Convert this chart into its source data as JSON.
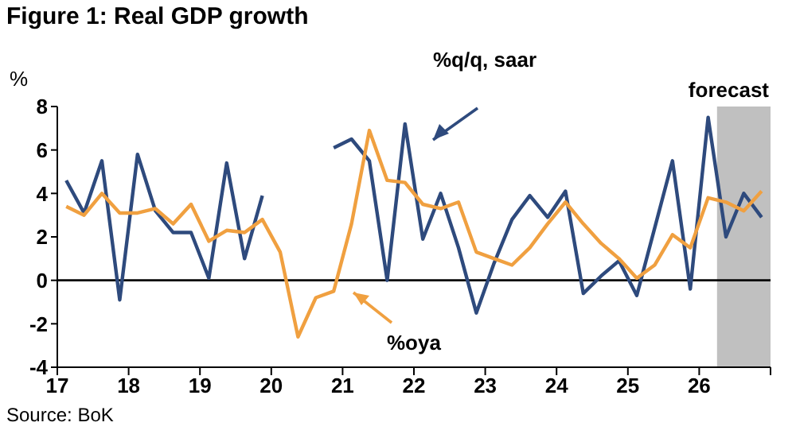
{
  "chart_data": {
    "type": "line",
    "title": "Figure 1: Real GDP growth",
    "ylabel": "%",
    "x": [
      2017.125,
      2017.375,
      2017.625,
      2017.875,
      2018.125,
      2018.375,
      2018.625,
      2018.875,
      2019.125,
      2019.375,
      2019.625,
      2019.875,
      2020.125,
      2020.375,
      2020.625,
      2020.875,
      2021.125,
      2021.375,
      2021.625,
      2021.875,
      2022.125,
      2022.375,
      2022.625,
      2022.875,
      2023.125,
      2023.375,
      2023.625,
      2023.875,
      2024.125,
      2024.375,
      2024.625,
      2024.875,
      2025.125,
      2025.375,
      2025.625,
      2025.875,
      2026.125,
      2026.375,
      2026.625,
      2026.875
    ],
    "series": [
      {
        "name": "%q/q, saar",
        "color": "#2e4a7d",
        "values": [
          4.6,
          3.1,
          5.5,
          -0.9,
          5.8,
          3.2,
          2.2,
          2.2,
          0.1,
          5.4,
          1.0,
          3.9,
          null,
          null,
          null,
          6.1,
          6.5,
          5.5,
          0.0,
          7.2,
          1.9,
          4.0,
          1.5,
          -1.5,
          0.8,
          2.8,
          3.9,
          2.9,
          4.1,
          -0.6,
          0.2,
          0.9,
          -0.7,
          2.4,
          5.5,
          -0.4,
          7.5,
          2.0,
          4.0,
          2.9
        ]
      },
      {
        "name": "%oya",
        "color": "#f0a040",
        "values": [
          3.4,
          3.0,
          4.0,
          3.1,
          3.1,
          3.3,
          2.6,
          3.5,
          1.8,
          2.3,
          2.2,
          2.8,
          1.3,
          -2.6,
          -0.8,
          -0.5,
          2.6,
          6.9,
          4.6,
          4.5,
          3.5,
          3.3,
          3.6,
          1.3,
          1.0,
          0.7,
          1.5,
          2.6,
          3.6,
          2.6,
          1.7,
          1.0,
          0.1,
          0.7,
          2.1,
          1.5,
          3.8,
          3.6,
          3.2,
          4.1
        ]
      }
    ],
    "xlim": [
      2017,
      2027
    ],
    "xticks": [
      {
        "value": 2017,
        "label": "17"
      },
      {
        "value": 2018,
        "label": "18"
      },
      {
        "value": 2019,
        "label": "19"
      },
      {
        "value": 2020,
        "label": "20"
      },
      {
        "value": 2021,
        "label": "21"
      },
      {
        "value": 2022,
        "label": "22"
      },
      {
        "value": 2023,
        "label": "23"
      },
      {
        "value": 2024,
        "label": "24"
      },
      {
        "value": 2025,
        "label": "25"
      },
      {
        "value": 2026,
        "label": "26"
      },
      {
        "value": 2027,
        "label": null
      }
    ],
    "ylim": [
      -4,
      8
    ],
    "yticks": [
      -4,
      -2,
      0,
      2,
      4,
      6,
      8
    ],
    "ref_lines": [
      {
        "axis": "y",
        "value": 0,
        "color": "#000000"
      }
    ],
    "bands": [
      {
        "axis": "x",
        "from": 2026.25,
        "to": 2027,
        "label": "forecast",
        "color": "#c0c0c0"
      }
    ],
    "grid": false,
    "marker": "none",
    "line_style": "solid",
    "annotations": [
      "Source: BoK"
    ]
  }
}
